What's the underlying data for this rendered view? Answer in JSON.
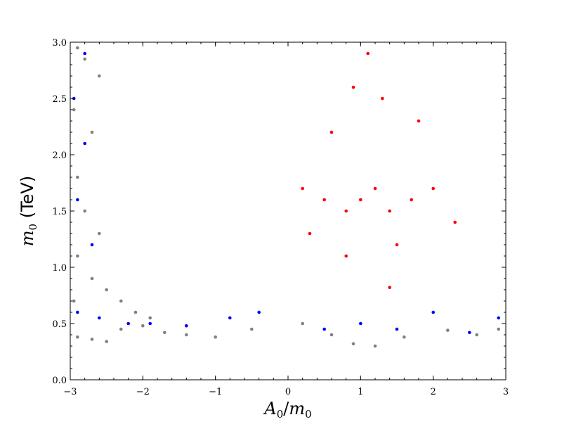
{
  "chart_data": {
    "type": "scatter",
    "title": "",
    "xlabel": {
      "main": "A",
      "sub": "0",
      "sep": "/",
      "main2": "m",
      "sub2": "0"
    },
    "ylabel": {
      "main": "m",
      "sub": "0",
      "unit": " (TeV)"
    },
    "xlim": [
      -3,
      3
    ],
    "ylim": [
      0,
      3
    ],
    "x_ticks": [
      -3,
      -2,
      -1,
      0,
      1,
      2,
      3
    ],
    "x_tick_labels": [
      "−3",
      "−2",
      "−1",
      "0",
      "1",
      "2",
      "3"
    ],
    "y_ticks": [
      0.0,
      0.5,
      1.0,
      1.5,
      2.0,
      2.5,
      3.0
    ],
    "y_tick_labels": [
      "0.0",
      "0.5",
      "1.0",
      "1.5",
      "2.0",
      "2.5",
      "3.0"
    ],
    "grid": false,
    "legend": "none",
    "series": [
      {
        "color": "#808080",
        "points": [
          [
            -2.9,
            0.38
          ],
          [
            -2.7,
            0.36
          ],
          [
            -2.5,
            0.34
          ],
          [
            -2.3,
            0.45
          ],
          [
            -2.0,
            0.48
          ],
          [
            -1.7,
            0.42
          ],
          [
            -1.4,
            0.4
          ],
          [
            -1.0,
            0.38
          ],
          [
            -0.5,
            0.45
          ],
          [
            0.2,
            0.5
          ],
          [
            0.6,
            0.4
          ],
          [
            0.9,
            0.32
          ],
          [
            1.2,
            0.3
          ],
          [
            1.6,
            0.38
          ],
          [
            2.2,
            0.44
          ],
          [
            2.6,
            0.4
          ],
          [
            2.9,
            0.45
          ],
          [
            -2.9,
            2.95
          ],
          [
            -2.8,
            2.85
          ],
          [
            -2.6,
            2.7
          ],
          [
            -2.95,
            2.4
          ],
          [
            -2.7,
            2.2
          ],
          [
            -2.9,
            1.8
          ],
          [
            -2.8,
            1.5
          ],
          [
            -2.6,
            1.3
          ],
          [
            -2.9,
            1.1
          ],
          [
            -2.7,
            0.9
          ],
          [
            -2.5,
            0.8
          ],
          [
            -2.3,
            0.7
          ],
          [
            -2.1,
            0.6
          ],
          [
            -1.9,
            0.55
          ],
          [
            -2.95,
            0.7
          ]
        ]
      },
      {
        "color": "#0000ff",
        "points": [
          [
            -2.9,
            0.6
          ],
          [
            -2.6,
            0.55
          ],
          [
            -2.2,
            0.5
          ],
          [
            -1.9,
            0.5
          ],
          [
            -1.4,
            0.48
          ],
          [
            -0.8,
            0.55
          ],
          [
            -0.4,
            0.6
          ],
          [
            0.5,
            0.45
          ],
          [
            1.0,
            0.5
          ],
          [
            1.5,
            0.45
          ],
          [
            2.0,
            0.6
          ],
          [
            2.5,
            0.42
          ],
          [
            2.9,
            0.55
          ],
          [
            -2.8,
            2.9
          ],
          [
            -2.95,
            2.5
          ],
          [
            -2.8,
            2.1
          ],
          [
            -2.9,
            1.6
          ],
          [
            -2.7,
            1.2
          ]
        ]
      },
      {
        "color": "#ff0000",
        "points": [
          [
            0.2,
            1.7
          ],
          [
            0.5,
            1.6
          ],
          [
            0.8,
            1.5
          ],
          [
            1.0,
            1.6
          ],
          [
            1.2,
            1.7
          ],
          [
            1.4,
            1.5
          ],
          [
            1.7,
            1.6
          ],
          [
            2.0,
            1.7
          ],
          [
            0.9,
            2.6
          ],
          [
            1.1,
            2.9
          ],
          [
            1.3,
            2.5
          ],
          [
            0.6,
            2.2
          ],
          [
            1.8,
            2.3
          ],
          [
            0.3,
            1.3
          ],
          [
            1.5,
            1.2
          ],
          [
            2.3,
            1.4
          ],
          [
            0.8,
            1.1
          ],
          [
            1.4,
            0.82
          ]
        ]
      }
    ]
  }
}
